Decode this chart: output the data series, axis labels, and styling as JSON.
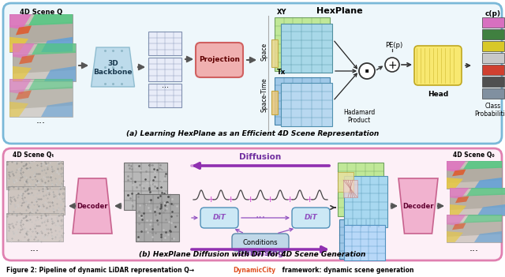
{
  "fig_width": 6.4,
  "fig_height": 3.51,
  "dpi": 100,
  "bg_color": "#ffffff",
  "panel_a_border": "#7ab8d8",
  "panel_a_bg": "#eef7fb",
  "panel_b_border": "#e080b0",
  "panel_b_bg": "#fdf0f7",
  "panel_a_label": "(a) Learning HexPlane as an Efficient 4D Scene Representation",
  "panel_b_label": "(b) HexPlane Diffusion with DiT for 4D Scene Generation",
  "caption_part1": "Figure 2: Pipeline of dynamic LiDAR representation Q",
  "caption_arrow": "→",
  "caption_highlight": "DynamicCity",
  "caption_part2": " framework: dynamic scene",
  "caption_color": "#000000",
  "caption_highlight_color": "#e05020"
}
